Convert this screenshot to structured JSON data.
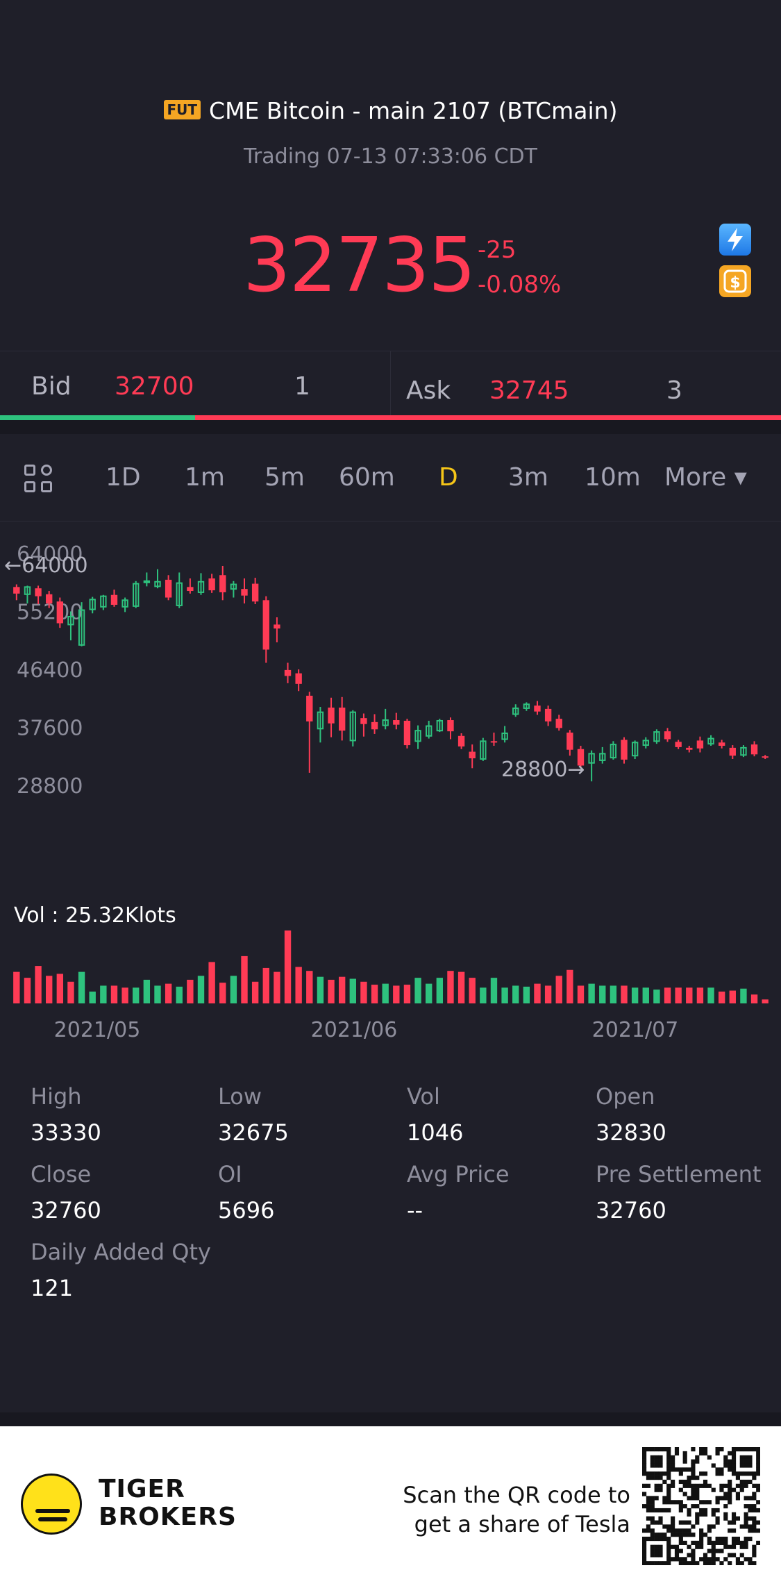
{
  "header": {
    "badge": "FUT",
    "title": "CME Bitcoin - main 2107 (BTCmain)",
    "status": "Trading 07-13 07:33:06 CDT",
    "price": "32735",
    "change": "-25",
    "change_pct": "-0.08%",
    "icons": [
      "flash-icon",
      "dollar-icon"
    ]
  },
  "quote": {
    "bid_label": "Bid",
    "bid_price": "32700",
    "bid_qty": "1",
    "ask_label": "Ask",
    "ask_price": "32745",
    "ask_qty": "3",
    "bid_share": 0.25
  },
  "tabs": {
    "items": [
      {
        "label": "1D"
      },
      {
        "label": "1m"
      },
      {
        "label": "5m"
      },
      {
        "label": "60m"
      },
      {
        "label": "D"
      },
      {
        "label": "3m"
      },
      {
        "label": "10m"
      },
      {
        "label": "More ▾"
      }
    ],
    "active": "D"
  },
  "chart_data": {
    "type": "candlestick",
    "y_ticks": [
      "64000",
      "55200",
      "46400",
      "37600",
      "28800"
    ],
    "high_marker": "←64000",
    "low_marker": "28800→",
    "ylim": [
      28800,
      64000
    ],
    "x_ticks": [
      "2021/05",
      "2021/06",
      "2021/07"
    ],
    "volume_label": "Vol  : 25.32Klots",
    "colors": {
      "up": "#2ec27e",
      "down": "#ff3b55"
    },
    "candles": [
      {
        "o": 58800,
        "c": 57800,
        "h": 59200,
        "l": 56800
      },
      {
        "o": 57700,
        "c": 58800,
        "h": 59000,
        "l": 56300
      },
      {
        "o": 58600,
        "c": 57400,
        "h": 59000,
        "l": 56200
      },
      {
        "o": 57700,
        "c": 56300,
        "h": 58200,
        "l": 55600
      },
      {
        "o": 56600,
        "c": 53300,
        "h": 57200,
        "l": 52600
      },
      {
        "o": 53100,
        "c": 54300,
        "h": 55100,
        "l": 50700
      },
      {
        "o": 50000,
        "c": 55300,
        "h": 56500,
        "l": 49800
      },
      {
        "o": 55400,
        "c": 56900,
        "h": 57300,
        "l": 54800
      },
      {
        "o": 55800,
        "c": 57400,
        "h": 57600,
        "l": 55300
      },
      {
        "o": 57600,
        "c": 56100,
        "h": 58400,
        "l": 55800
      },
      {
        "o": 55800,
        "c": 56800,
        "h": 57200,
        "l": 55000
      },
      {
        "o": 55900,
        "c": 59300,
        "h": 59700,
        "l": 55600
      },
      {
        "o": 59500,
        "c": 59700,
        "h": 61000,
        "l": 58900
      },
      {
        "o": 58900,
        "c": 59600,
        "h": 61500,
        "l": 58600
      },
      {
        "o": 59900,
        "c": 57200,
        "h": 60600,
        "l": 56800
      },
      {
        "o": 56000,
        "c": 59400,
        "h": 61000,
        "l": 55600
      },
      {
        "o": 58800,
        "c": 58200,
        "h": 60100,
        "l": 57800
      },
      {
        "o": 58000,
        "c": 59600,
        "h": 60900,
        "l": 57600
      },
      {
        "o": 60100,
        "c": 58300,
        "h": 60800,
        "l": 57900
      },
      {
        "o": 60600,
        "c": 58000,
        "h": 62000,
        "l": 56800
      },
      {
        "o": 58500,
        "c": 59200,
        "h": 59700,
        "l": 57200
      },
      {
        "o": 58500,
        "c": 57500,
        "h": 60100,
        "l": 56300
      },
      {
        "o": 59300,
        "c": 56600,
        "h": 60200,
        "l": 56200
      },
      {
        "o": 56800,
        "c": 49300,
        "h": 57400,
        "l": 47300
      },
      {
        "o": 53100,
        "c": 52500,
        "h": 54200,
        "l": 50400
      },
      {
        "o": 46200,
        "c": 45300,
        "h": 47300,
        "l": 44200
      },
      {
        "o": 45700,
        "c": 44100,
        "h": 46300,
        "l": 43000
      },
      {
        "o": 42300,
        "c": 38400,
        "h": 42900,
        "l": 30600
      },
      {
        "o": 37300,
        "c": 39800,
        "h": 40600,
        "l": 35200
      },
      {
        "o": 40500,
        "c": 38100,
        "h": 42000,
        "l": 36000
      },
      {
        "o": 40500,
        "c": 37000,
        "h": 42100,
        "l": 35500
      },
      {
        "o": 35500,
        "c": 39800,
        "h": 40100,
        "l": 34600
      },
      {
        "o": 38900,
        "c": 38000,
        "h": 39600,
        "l": 36100
      },
      {
        "o": 38300,
        "c": 37200,
        "h": 39500,
        "l": 36500
      },
      {
        "o": 37800,
        "c": 38600,
        "h": 40300,
        "l": 37200
      },
      {
        "o": 38600,
        "c": 37900,
        "h": 39700,
        "l": 37200
      },
      {
        "o": 38500,
        "c": 34800,
        "h": 38800,
        "l": 34300
      },
      {
        "o": 35400,
        "c": 37000,
        "h": 37800,
        "l": 34200
      },
      {
        "o": 36200,
        "c": 37700,
        "h": 38500,
        "l": 35800
      },
      {
        "o": 37000,
        "c": 38500,
        "h": 38800,
        "l": 36800
      },
      {
        "o": 38600,
        "c": 36900,
        "h": 39000,
        "l": 35700
      },
      {
        "o": 36200,
        "c": 34600,
        "h": 36600,
        "l": 34200
      },
      {
        "o": 33800,
        "c": 32800,
        "h": 34900,
        "l": 31300
      },
      {
        "o": 32700,
        "c": 35400,
        "h": 35900,
        "l": 32400
      },
      {
        "o": 35400,
        "c": 35200,
        "h": 36700,
        "l": 34700
      },
      {
        "o": 35700,
        "c": 36600,
        "h": 37700,
        "l": 35200
      },
      {
        "o": 39500,
        "c": 40400,
        "h": 41000,
        "l": 39100
      },
      {
        "o": 40400,
        "c": 41000,
        "h": 41300,
        "l": 40000
      },
      {
        "o": 40800,
        "c": 39900,
        "h": 41500,
        "l": 39400
      },
      {
        "o": 40300,
        "c": 38400,
        "h": 40800,
        "l": 37700
      },
      {
        "o": 38800,
        "c": 37400,
        "h": 39400,
        "l": 37000
      },
      {
        "o": 36700,
        "c": 34100,
        "h": 37100,
        "l": 33200
      },
      {
        "o": 34200,
        "c": 31700,
        "h": 34700,
        "l": 31500
      },
      {
        "o": 32100,
        "c": 33500,
        "h": 34000,
        "l": 29300
      },
      {
        "o": 32500,
        "c": 33500,
        "h": 34500,
        "l": 32000
      },
      {
        "o": 32900,
        "c": 34900,
        "h": 35400,
        "l": 32600
      },
      {
        "o": 35600,
        "c": 32600,
        "h": 36000,
        "l": 32000
      },
      {
        "o": 33200,
        "c": 35200,
        "h": 35500,
        "l": 32700
      },
      {
        "o": 34800,
        "c": 35500,
        "h": 36000,
        "l": 34300
      },
      {
        "o": 35400,
        "c": 36800,
        "h": 37200,
        "l": 35000
      },
      {
        "o": 36900,
        "c": 35700,
        "h": 37400,
        "l": 35300
      },
      {
        "o": 35300,
        "c": 34500,
        "h": 35600,
        "l": 34200
      },
      {
        "o": 34400,
        "c": 34100,
        "h": 34700,
        "l": 33700
      },
      {
        "o": 35500,
        "c": 34300,
        "h": 36100,
        "l": 33700
      },
      {
        "o": 35000,
        "c": 35800,
        "h": 36300,
        "l": 34700
      },
      {
        "o": 35200,
        "c": 34700,
        "h": 35600,
        "l": 34300
      },
      {
        "o": 34400,
        "c": 33200,
        "h": 34800,
        "l": 32700
      },
      {
        "o": 33300,
        "c": 34400,
        "h": 34800,
        "l": 33000
      },
      {
        "o": 34900,
        "c": 33400,
        "h": 35400,
        "l": 33100
      },
      {
        "o": 33100,
        "c": 32900,
        "h": 33300,
        "l": 32700
      }
    ],
    "volume_up": [
      false,
      false,
      false,
      false,
      false,
      false,
      true,
      true,
      true,
      false,
      false,
      true,
      true,
      true,
      false,
      true,
      false,
      true,
      false,
      false,
      true,
      false,
      false,
      false,
      false,
      false,
      false,
      false,
      true,
      false,
      false,
      true,
      false,
      false,
      true,
      false,
      false,
      true,
      true,
      true,
      false,
      false,
      false,
      true,
      true,
      true,
      true,
      true,
      false,
      false,
      false,
      false,
      false,
      true,
      true,
      true,
      false,
      true,
      true,
      true,
      false,
      false,
      false,
      false,
      true,
      false,
      false,
      true,
      false,
      false
    ],
    "volume": [
      3.2,
      2.6,
      3.8,
      2.8,
      3.0,
      2.2,
      3.2,
      1.2,
      1.8,
      1.8,
      1.6,
      1.6,
      2.4,
      1.8,
      2.0,
      1.7,
      2.4,
      2.8,
      4.2,
      2.1,
      2.8,
      4.8,
      2.2,
      3.6,
      3.2,
      7.4,
      3.7,
      3.3,
      2.7,
      2.4,
      2.7,
      2.5,
      2.2,
      1.9,
      2.0,
      1.8,
      1.9,
      2.6,
      2.0,
      2.6,
      3.3,
      3.2,
      2.6,
      1.6,
      2.6,
      1.6,
      1.8,
      1.7,
      2.0,
      1.8,
      2.8,
      3.4,
      1.8,
      2.0,
      1.8,
      1.8,
      1.8,
      1.6,
      1.6,
      1.4,
      1.6,
      1.6,
      1.6,
      1.6,
      1.6,
      1.2,
      1.3,
      1.5,
      0.9,
      0.4
    ]
  },
  "stats": [
    {
      "label": "High",
      "value": "33330"
    },
    {
      "label": "Low",
      "value": "32675"
    },
    {
      "label": "Vol",
      "value": "1046"
    },
    {
      "label": "Open",
      "value": "32830"
    },
    {
      "label": "Close",
      "value": "32760"
    },
    {
      "label": "OI",
      "value": "5696"
    },
    {
      "label": "Avg Price",
      "value": "--"
    },
    {
      "label": "Pre Settlement",
      "value": "32760"
    },
    {
      "label": "Daily Added Qty",
      "value": "121"
    }
  ],
  "footer": {
    "brand_line1": "TIGER",
    "brand_line2": "BROKERS",
    "promo_line1": "Scan the QR code to",
    "promo_line2": "get a share of Tesla"
  }
}
